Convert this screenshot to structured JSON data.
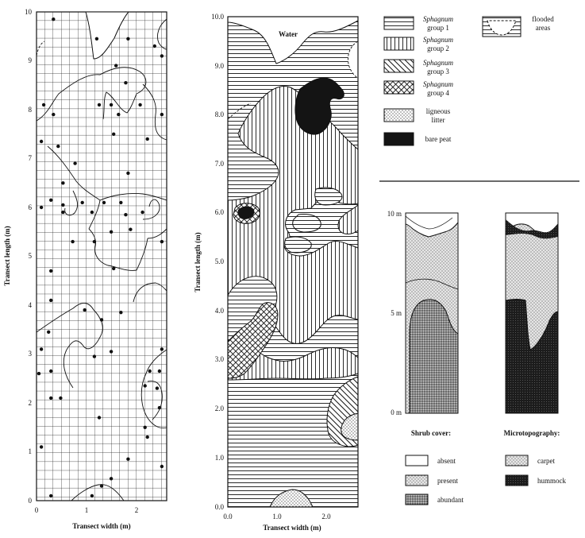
{
  "panel_a": {
    "x_axis_label": "Transect width (m)",
    "y_axis_label": "Transect length (m)",
    "x_ticks": [
      "0",
      "1",
      "2"
    ],
    "y_ticks": [
      "0",
      "1",
      "2",
      "3",
      "4",
      "5",
      "6",
      "7",
      "8",
      "9",
      "10"
    ],
    "xlim": [
      0,
      2.7
    ],
    "ylim": [
      0,
      10
    ],
    "points": [
      [
        0.35,
        9.85
      ],
      [
        1.25,
        9.45
      ],
      [
        1.9,
        9.45
      ],
      [
        2.45,
        9.3
      ],
      [
        2.6,
        9.1
      ],
      [
        1.65,
        8.9
      ],
      [
        1.85,
        8.55
      ],
      [
        0.15,
        8.1
      ],
      [
        0.35,
        7.9
      ],
      [
        1.3,
        8.1
      ],
      [
        1.55,
        8.1
      ],
      [
        1.7,
        7.9
      ],
      [
        2.15,
        8.1
      ],
      [
        2.6,
        7.9
      ],
      [
        0.1,
        7.35
      ],
      [
        0.45,
        7.25
      ],
      [
        1.6,
        7.5
      ],
      [
        2.3,
        7.4
      ],
      [
        0.8,
        6.9
      ],
      [
        0.55,
        6.5
      ],
      [
        1.9,
        6.7
      ],
      [
        0.3,
        6.15
      ],
      [
        0.55,
        6.05
      ],
      [
        0.95,
        6.1
      ],
      [
        1.4,
        6.1
      ],
      [
        1.75,
        6.1
      ],
      [
        0.1,
        6.0
      ],
      [
        0.55,
        5.9
      ],
      [
        1.15,
        5.9
      ],
      [
        1.85,
        5.85
      ],
      [
        2.2,
        5.9
      ],
      [
        1.95,
        5.55
      ],
      [
        0.75,
        5.3
      ],
      [
        1.2,
        5.3
      ],
      [
        1.55,
        5.5
      ],
      [
        2.6,
        5.3
      ],
      [
        0.3,
        4.7
      ],
      [
        1.6,
        4.75
      ],
      [
        0.3,
        4.1
      ],
      [
        1.0,
        3.9
      ],
      [
        1.35,
        3.7
      ],
      [
        1.75,
        3.85
      ],
      [
        0.25,
        3.45
      ],
      [
        0.1,
        3.1
      ],
      [
        1.2,
        2.95
      ],
      [
        1.55,
        3.05
      ],
      [
        2.6,
        3.1
      ],
      [
        0.05,
        2.6
      ],
      [
        0.3,
        2.65
      ],
      [
        2.35,
        2.65
      ],
      [
        2.55,
        2.65
      ],
      [
        2.25,
        2.35
      ],
      [
        0.3,
        2.1
      ],
      [
        0.5,
        2.1
      ],
      [
        2.5,
        2.3
      ],
      [
        2.25,
        1.5
      ],
      [
        2.55,
        1.9
      ],
      [
        1.3,
        1.7
      ],
      [
        2.3,
        1.3
      ],
      [
        0.1,
        1.1
      ],
      [
        1.9,
        0.85
      ],
      [
        2.6,
        0.7
      ],
      [
        1.55,
        0.45
      ],
      [
        1.35,
        0.3
      ],
      [
        0.3,
        0.1
      ],
      [
        1.15,
        0.1
      ]
    ]
  },
  "panel_b": {
    "x_axis_label": "Transect width (m)",
    "y_axis_label": "Transect length (m)",
    "x_ticks": [
      "0.0",
      "1.0",
      "2.0"
    ],
    "y_ticks": [
      "0.0",
      "1.0",
      "2.0",
      "3.0",
      "4.0",
      "5.0",
      "6.0",
      "7.0",
      "8.0",
      "9.0",
      "10.0"
    ],
    "water_label": "Water"
  },
  "legend": {
    "sphagnum_word": "Sphagnum",
    "items": [
      {
        "top": "Sphagnum",
        "bottom": "group 1",
        "pattern": "horizontal-lines"
      },
      {
        "top": "Sphagnum",
        "bottom": "group 2",
        "pattern": "vertical-lines"
      },
      {
        "top": "Sphagnum",
        "bottom": "group 3",
        "pattern": "diagonal-lines"
      },
      {
        "top": "Sphagnum",
        "bottom": "group 4",
        "pattern": "crosshatch"
      },
      {
        "top": "ligneous",
        "bottom": "litter",
        "pattern": "dots"
      },
      {
        "top": "bare peat",
        "bottom": "",
        "pattern": "solid-black"
      }
    ],
    "flooded": {
      "top": "flooded",
      "bottom": "areas"
    }
  },
  "panel_c": {
    "y_ticks": [
      "10 m",
      "5 m",
      "0 m"
    ],
    "shrub_title": "Shrub cover:",
    "micro_title": "Microtopography:",
    "shrub_legend": [
      "absent",
      "present",
      "abundant"
    ],
    "micro_legend": [
      "carpet",
      "hummock"
    ]
  },
  "colors": {
    "ink": "#111111",
    "paper": "#ffffff",
    "dot_light": "#b5b5b5",
    "dot_dark": "#6d6d6d"
  }
}
